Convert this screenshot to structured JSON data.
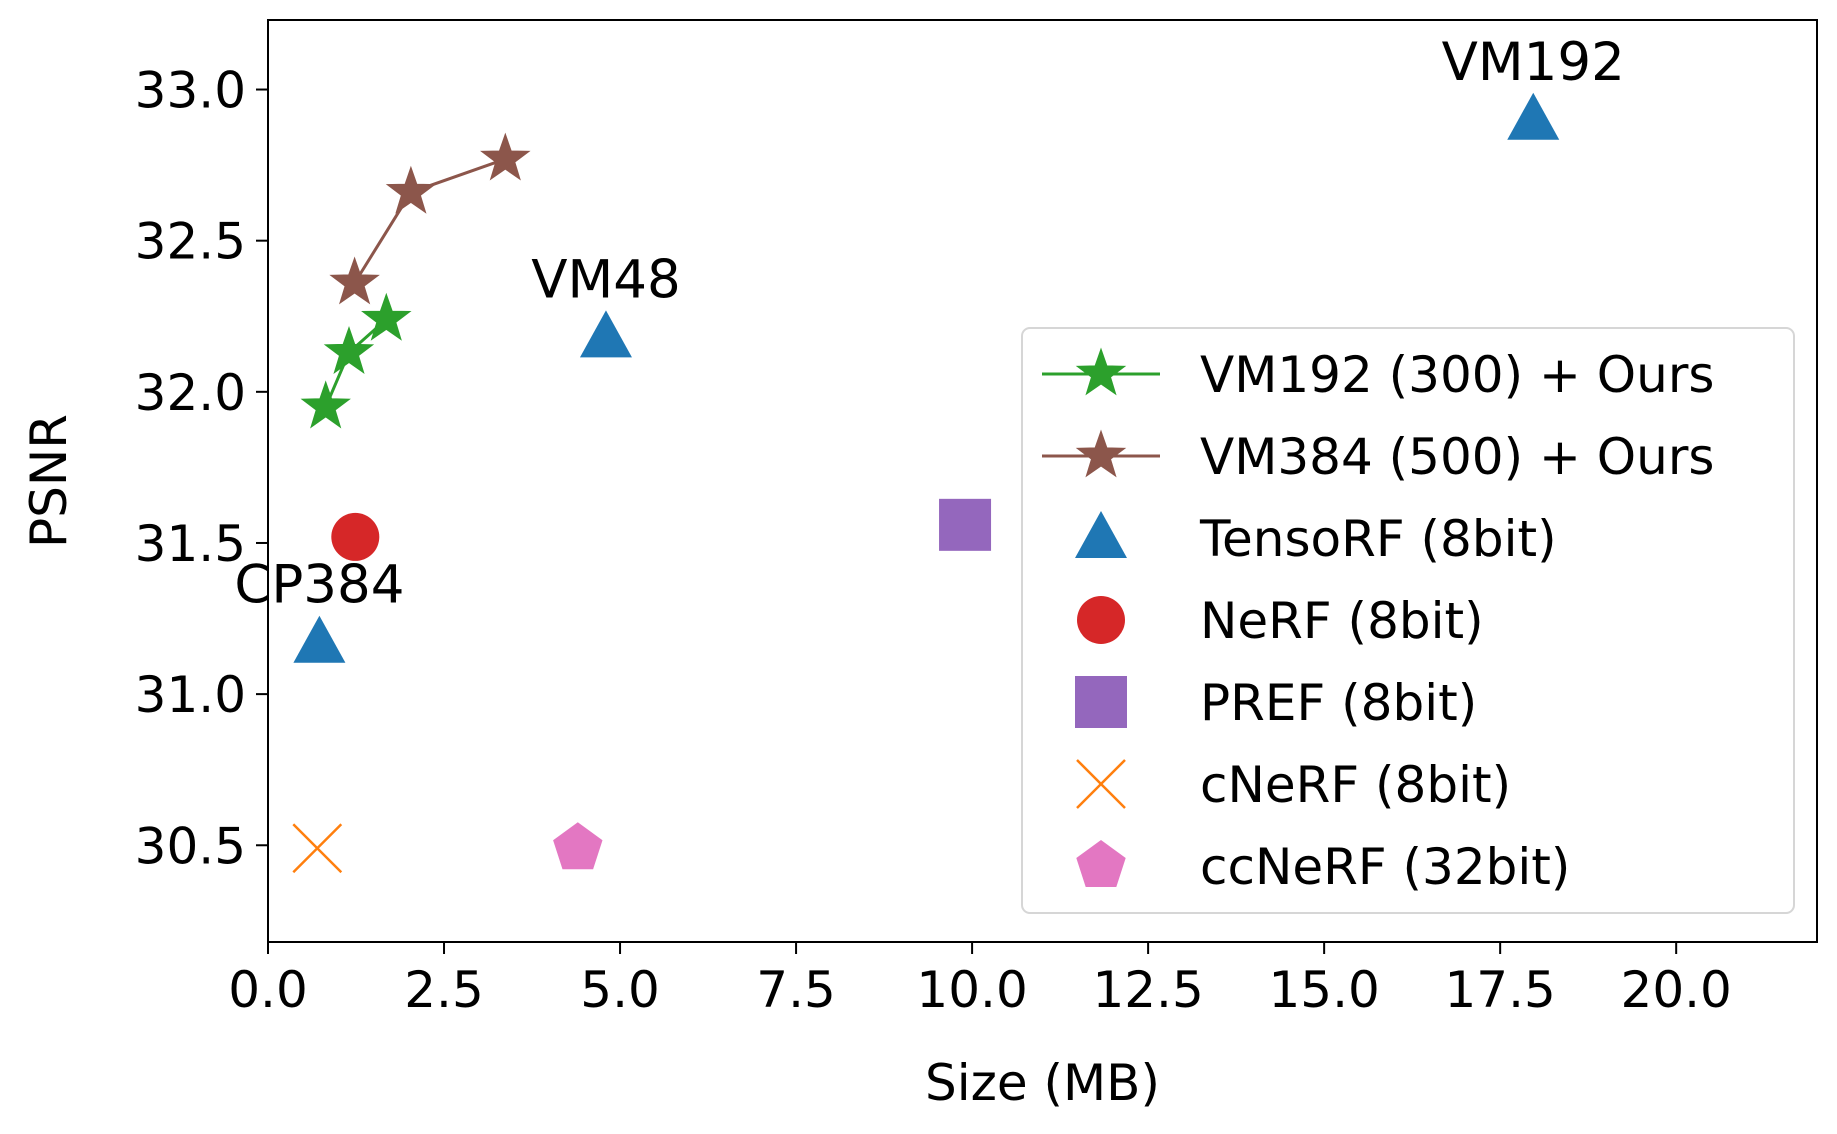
{
  "chart_data": {
    "type": "scatter",
    "title": "",
    "xlabel": "Size (MB)",
    "ylabel": "PSNR",
    "xlim": [
      0.0,
      22.0
    ],
    "ylim": [
      30.18,
      33.23
    ],
    "grid": false,
    "legend_position": "lower-right",
    "xticks": [
      0.0,
      2.5,
      5.0,
      7.5,
      10.0,
      12.5,
      15.0,
      17.5,
      20.0
    ],
    "xtick_labels": [
      "0.0",
      "2.5",
      "5.0",
      "7.5",
      "10.0",
      "12.5",
      "15.0",
      "17.5",
      "20.0"
    ],
    "yticks": [
      30.5,
      31.0,
      31.5,
      32.0,
      32.5,
      33.0
    ],
    "ytick_labels": [
      "30.5",
      "31.0",
      "31.5",
      "32.0",
      "32.5",
      "33.0"
    ],
    "series": [
      {
        "name": "VM192 (300) + Ours",
        "marker": "star",
        "line": true,
        "color": "#2ca02c",
        "x": [
          0.82,
          1.15,
          1.68
        ],
        "y": [
          31.95,
          32.13,
          32.24
        ]
      },
      {
        "name": "VM384 (500) + Ours",
        "marker": "star",
        "line": true,
        "color": "#8c564b",
        "x": [
          1.23,
          2.03,
          3.37
        ],
        "y": [
          32.36,
          32.66,
          32.77
        ]
      },
      {
        "name": "TensoRF (8bit)",
        "marker": "triangle",
        "line": false,
        "color": "#1f77b4",
        "x": [
          0.73,
          4.8,
          17.97
        ],
        "y": [
          31.17,
          32.18,
          32.9
        ]
      },
      {
        "name": "NeRF (8bit)",
        "marker": "circle",
        "line": false,
        "color": "#d62728",
        "x": [
          1.24
        ],
        "y": [
          31.52
        ]
      },
      {
        "name": "PREF (8bit)",
        "marker": "square",
        "line": false,
        "color": "#9467bd",
        "x": [
          9.9
        ],
        "y": [
          31.56
        ]
      },
      {
        "name": "cNeRF (8bit)",
        "marker": "x",
        "line": false,
        "color": "#ff7f0e",
        "x": [
          0.7
        ],
        "y": [
          30.49
        ]
      },
      {
        "name": "ccNeRF (32bit)",
        "marker": "pentagon",
        "line": false,
        "color": "#e377c2",
        "x": [
          4.4
        ],
        "y": [
          30.49
        ]
      }
    ],
    "annotations": [
      {
        "text": "VM192",
        "x": 17.97,
        "y": 32.9
      },
      {
        "text": "VM48",
        "x": 4.8,
        "y": 32.18
      },
      {
        "text": "CP384",
        "x": 0.73,
        "y": 31.17
      }
    ]
  }
}
